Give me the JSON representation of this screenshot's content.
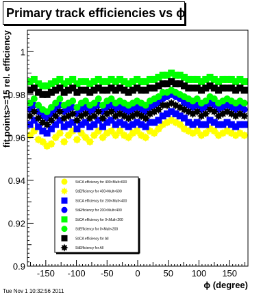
{
  "title": "Primary track efficiencies vs ϕ",
  "footer": "Tue Nov  1 10:32:56 2011",
  "chart_data": {
    "type": "scatter",
    "title": "Primary track efficiencies vs ϕ",
    "xlabel": "ϕ (degree)",
    "ylabel": "fit points>=15 rel. efficiency",
    "xlim": [
      -180,
      180
    ],
    "ylim": [
      0.9,
      1.01
    ],
    "xticks": [
      -150,
      -100,
      -50,
      0,
      50,
      100,
      150
    ],
    "yticks": [
      0.9,
      0.92,
      0.94,
      0.96,
      0.98,
      1
    ],
    "ytick_labels": [
      "0.9",
      "0.92",
      "0.94",
      "0.96",
      "0.98",
      "1"
    ],
    "grid": false,
    "legend_position": "lower-left",
    "x": [
      -176,
      -169,
      -162,
      -155,
      -148,
      -141,
      -134,
      -127,
      -120,
      -113,
      -106,
      -99,
      -92,
      -85,
      -78,
      -71,
      -64,
      -57,
      -50,
      -43,
      -36,
      -29,
      -22,
      -15,
      -8,
      -1,
      6,
      13,
      20,
      27,
      34,
      41,
      48,
      55,
      62,
      69,
      76,
      83,
      90,
      97,
      104,
      111,
      118,
      125,
      132,
      139,
      146,
      153,
      160,
      167,
      174
    ],
    "series": [
      {
        "name": "StiCA efficiency  for 400<Mult<600",
        "color": "#ffff00",
        "marker": "circle",
        "values": [
          0.961,
          0.963,
          0.959,
          0.958,
          0.956,
          0.957,
          0.96,
          0.962,
          0.958,
          0.961,
          0.963,
          0.959,
          0.962,
          0.96,
          0.958,
          0.961,
          0.963,
          0.96,
          0.962,
          0.963,
          0.961,
          0.963,
          0.961,
          0.96,
          0.962,
          0.963,
          0.961,
          0.96,
          0.963,
          0.962,
          0.964,
          0.966,
          0.967,
          0.968,
          0.967,
          0.966,
          0.964,
          0.963,
          0.962,
          0.963,
          0.961,
          0.962,
          0.964,
          0.963,
          0.961,
          0.962,
          0.963,
          0.962,
          0.961,
          0.962,
          0.961
        ]
      },
      {
        "name": "StiEfficiency  for 400<Mult<600",
        "color": "#ffff00",
        "marker": "star",
        "values": [
          0.961,
          0.963,
          0.959,
          0.958,
          0.956,
          0.957,
          0.96,
          0.962,
          0.958,
          0.961,
          0.963,
          0.959,
          0.962,
          0.96,
          0.958,
          0.961,
          0.963,
          0.96,
          0.962,
          0.963,
          0.961,
          0.963,
          0.961,
          0.96,
          0.962,
          0.963,
          0.961,
          0.96,
          0.963,
          0.962,
          0.964,
          0.966,
          0.967,
          0.968,
          0.967,
          0.966,
          0.964,
          0.963,
          0.962,
          0.963,
          0.961,
          0.962,
          0.964,
          0.963,
          0.961,
          0.962,
          0.963,
          0.962,
          0.961,
          0.962,
          0.961
        ]
      },
      {
        "name": "StiCA efficiency  for 200<Mult<400",
        "color": "#0000ff",
        "marker": "square",
        "values": [
          0.966,
          0.968,
          0.965,
          0.963,
          0.962,
          0.964,
          0.966,
          0.968,
          0.965,
          0.966,
          0.967,
          0.964,
          0.966,
          0.967,
          0.965,
          0.966,
          0.968,
          0.965,
          0.967,
          0.968,
          0.966,
          0.967,
          0.966,
          0.965,
          0.966,
          0.967,
          0.966,
          0.965,
          0.967,
          0.967,
          0.968,
          0.97,
          0.971,
          0.972,
          0.971,
          0.97,
          0.969,
          0.967,
          0.966,
          0.967,
          0.966,
          0.966,
          0.968,
          0.967,
          0.966,
          0.966,
          0.967,
          0.966,
          0.965,
          0.966,
          0.966
        ]
      },
      {
        "name": "StiEfficiency  for 200<Mult<400",
        "color": "#0000ff",
        "marker": "circle",
        "values": [
          0.973,
          0.975,
          0.972,
          0.97,
          0.969,
          0.971,
          0.973,
          0.975,
          0.972,
          0.973,
          0.974,
          0.971,
          0.973,
          0.974,
          0.972,
          0.973,
          0.975,
          0.972,
          0.974,
          0.975,
          0.973,
          0.974,
          0.973,
          0.972,
          0.973,
          0.974,
          0.973,
          0.972,
          0.974,
          0.975,
          0.976,
          0.978,
          0.979,
          0.98,
          0.979,
          0.978,
          0.976,
          0.975,
          0.974,
          0.975,
          0.973,
          0.974,
          0.976,
          0.975,
          0.973,
          0.974,
          0.975,
          0.974,
          0.973,
          0.974,
          0.973
        ]
      },
      {
        "name": "StiCA efficiency  for 0<Mult<200",
        "color": "#00ff00",
        "marker": "square",
        "values": [
          0.986,
          0.987,
          0.985,
          0.984,
          0.984,
          0.985,
          0.986,
          0.987,
          0.985,
          0.986,
          0.987,
          0.985,
          0.986,
          0.986,
          0.985,
          0.986,
          0.987,
          0.986,
          0.986,
          0.987,
          0.986,
          0.987,
          0.986,
          0.985,
          0.986,
          0.987,
          0.986,
          0.986,
          0.987,
          0.987,
          0.988,
          0.989,
          0.989,
          0.99,
          0.989,
          0.989,
          0.988,
          0.987,
          0.987,
          0.987,
          0.986,
          0.987,
          0.988,
          0.987,
          0.986,
          0.987,
          0.987,
          0.987,
          0.986,
          0.987,
          0.986
        ]
      },
      {
        "name": "StiEfficiency  for 0<Mult<200",
        "color": "#00ff00",
        "marker": "circle",
        "values": [
          0.976,
          0.978,
          0.975,
          0.973,
          0.972,
          0.974,
          0.976,
          0.978,
          0.975,
          0.976,
          0.977,
          0.974,
          0.976,
          0.977,
          0.975,
          0.976,
          0.978,
          0.975,
          0.977,
          0.978,
          0.976,
          0.977,
          0.976,
          0.975,
          0.976,
          0.977,
          0.976,
          0.975,
          0.977,
          0.978,
          0.979,
          0.981,
          0.981,
          0.982,
          0.981,
          0.98,
          0.979,
          0.978,
          0.977,
          0.978,
          0.976,
          0.977,
          0.979,
          0.978,
          0.976,
          0.977,
          0.978,
          0.977,
          0.976,
          0.977,
          0.976
        ]
      },
      {
        "name": "StiCA efficiency  for All",
        "color": "#000000",
        "marker": "square",
        "values": [
          0.982,
          0.983,
          0.981,
          0.98,
          0.98,
          0.981,
          0.982,
          0.983,
          0.981,
          0.982,
          0.983,
          0.981,
          0.982,
          0.982,
          0.981,
          0.982,
          0.983,
          0.982,
          0.982,
          0.983,
          0.982,
          0.983,
          0.982,
          0.981,
          0.982,
          0.983,
          0.982,
          0.982,
          0.983,
          0.983,
          0.984,
          0.985,
          0.985,
          0.986,
          0.985,
          0.985,
          0.984,
          0.983,
          0.983,
          0.983,
          0.982,
          0.983,
          0.984,
          0.983,
          0.982,
          0.983,
          0.983,
          0.983,
          0.982,
          0.983,
          0.982
        ]
      },
      {
        "name": "StiEfficiency  for All",
        "color": "#000000",
        "marker": "star",
        "values": [
          0.97,
          0.972,
          0.969,
          0.967,
          0.966,
          0.968,
          0.97,
          0.972,
          0.969,
          0.97,
          0.971,
          0.968,
          0.97,
          0.971,
          0.969,
          0.97,
          0.972,
          0.969,
          0.971,
          0.972,
          0.97,
          0.971,
          0.97,
          0.969,
          0.97,
          0.971,
          0.97,
          0.969,
          0.971,
          0.972,
          0.973,
          0.975,
          0.975,
          0.976,
          0.975,
          0.974,
          0.973,
          0.972,
          0.971,
          0.972,
          0.97,
          0.971,
          0.973,
          0.972,
          0.97,
          0.971,
          0.972,
          0.971,
          0.97,
          0.971,
          0.97
        ]
      }
    ],
    "legend": [
      {
        "label": "StiCA efficiency  for 400<Mult<600",
        "color": "#ffff00",
        "marker": "circle"
      },
      {
        "label": "StiEfficiency  for 400<Mult<600",
        "color": "#ffff00",
        "marker": "star"
      },
      {
        "label": "StiCA efficiency  for 200<Mult<400",
        "color": "#0000ff",
        "marker": "square"
      },
      {
        "label": "StiEfficiency  for 200<Mult<400",
        "color": "#0000ff",
        "marker": "circle"
      },
      {
        "label": "StiCA efficiency  for 0<Mult<200",
        "color": "#00ff00",
        "marker": "square"
      },
      {
        "label": "StiEfficiency  for 0<Mult<200",
        "color": "#00ff00",
        "marker": "circle"
      },
      {
        "label": "StiCA efficiency  for All",
        "color": "#000000",
        "marker": "square"
      },
      {
        "label": "StiEfficiency  for All",
        "color": "#000000",
        "marker": "star"
      }
    ]
  }
}
